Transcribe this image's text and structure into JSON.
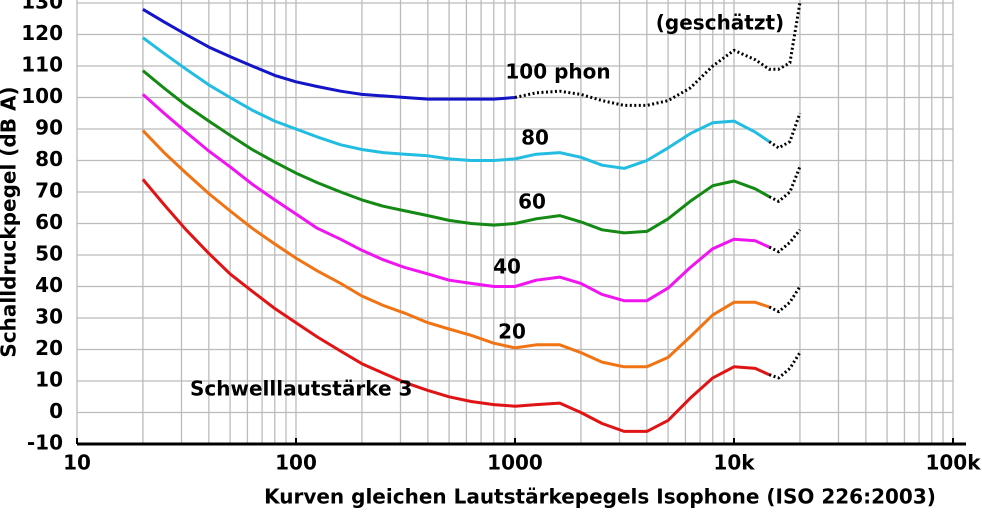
{
  "chart_data": {
    "type": "line",
    "log_x": true,
    "grid": true,
    "minor_grid": true,
    "x_label": "Kurven gleichen Lautstärkepegels Isophone (ISO 226:2003)",
    "y_label": "Schalldruckpegel (dB A)",
    "xlim": [
      10,
      100000
    ],
    "xticks": [
      10,
      100,
      1000,
      {
        "value": 10000,
        "label": "10k"
      },
      {
        "value": 100000,
        "label": "100k"
      }
    ],
    "ylim": [
      -10,
      130
    ],
    "yticks": [
      -10,
      0,
      10,
      20,
      30,
      40,
      50,
      60,
      70,
      80,
      90,
      100,
      110,
      120,
      130
    ],
    "annotations": [
      "100 phon",
      "80",
      "60",
      "40",
      "20",
      "Schwelllautstärke 3",
      "(geschätzt)"
    ],
    "x": [
      20,
      25,
      31.5,
      40,
      50,
      63,
      80,
      100,
      125,
      160,
      200,
      250,
      315,
      400,
      500,
      630,
      800,
      1000,
      1250,
      1600,
      2000,
      2500,
      3150,
      4000,
      5000,
      6300,
      8000,
      10000,
      12500,
      14500,
      16000,
      18000,
      20000
    ],
    "series": [
      {
        "color": "#1414c8",
        "style": "solid",
        "values": [
          128,
          124,
          120,
          116,
          113,
          110,
          107,
          105,
          103.5,
          102,
          101,
          100.5,
          100,
          99.5,
          99.5,
          99.5,
          99.5,
          100,
          null,
          null,
          null,
          null,
          null,
          null,
          null,
          null,
          null,
          null,
          null,
          null,
          null,
          null,
          null
        ]
      },
      {
        "color": "#22bde0",
        "style": "solid",
        "values": [
          119,
          114,
          109,
          104,
          100,
          96,
          92.5,
          90,
          87.5,
          85,
          83.5,
          82.5,
          82,
          81.5,
          80.5,
          80,
          80,
          80.5,
          82,
          82.5,
          81,
          78.5,
          77.5,
          80,
          84,
          88.5,
          92,
          92.5,
          89,
          86,
          null,
          null,
          null
        ]
      },
      {
        "color": "#148a14",
        "style": "solid",
        "values": [
          108.5,
          103,
          97.5,
          92.5,
          88,
          83.5,
          79.5,
          76,
          73,
          70,
          67.5,
          65.5,
          64,
          62.5,
          61,
          60,
          59.5,
          60,
          61.5,
          62.5,
          60.5,
          58,
          57,
          57.5,
          61.5,
          67,
          72,
          73.5,
          71,
          68.5,
          null,
          null,
          null
        ]
      },
      {
        "color": "#f014f0",
        "style": "solid",
        "values": [
          101,
          95,
          89,
          83,
          78,
          72.5,
          67.5,
          63,
          58.5,
          55,
          51.5,
          48.5,
          46,
          44,
          42,
          41,
          40,
          40,
          42,
          43,
          41,
          37.5,
          35.5,
          35.5,
          39.5,
          46,
          52,
          55,
          54.5,
          52.5,
          null,
          null,
          null
        ]
      },
      {
        "color": "#f07414",
        "style": "solid",
        "values": [
          89.5,
          82.5,
          76,
          69.5,
          64,
          58.5,
          53.5,
          49,
          45,
          41,
          37,
          34,
          31.5,
          28.5,
          26.5,
          24.5,
          22,
          20.5,
          21.5,
          21.5,
          19,
          16,
          14.5,
          14.5,
          17.5,
          24,
          31,
          35,
          35,
          33.5,
          null,
          null,
          null
        ]
      },
      {
        "color": "#e01414",
        "style": "solid",
        "values": [
          74,
          66,
          58,
          50.5,
          44,
          38.5,
          33,
          28.5,
          24,
          19.5,
          15.5,
          12.5,
          9.5,
          7,
          5,
          3.5,
          2.5,
          2,
          2.5,
          3,
          0,
          -3.5,
          -6,
          -6,
          -2.5,
          4.5,
          11,
          14.5,
          14,
          12,
          null,
          null,
          null
        ]
      },
      {
        "color": "#000000",
        "style": "dotted",
        "values": [
          null,
          null,
          null,
          null,
          null,
          null,
          null,
          null,
          null,
          null,
          null,
          null,
          null,
          null,
          null,
          null,
          null,
          100,
          101.5,
          102,
          101,
          99,
          97.5,
          97.5,
          99,
          103,
          110,
          115,
          112,
          109,
          109,
          111,
          130
        ]
      },
      {
        "color": "#000000",
        "style": "dotted",
        "values": [
          null,
          null,
          null,
          null,
          null,
          null,
          null,
          null,
          null,
          null,
          null,
          null,
          null,
          null,
          null,
          null,
          null,
          null,
          null,
          null,
          null,
          null,
          null,
          null,
          null,
          null,
          null,
          null,
          null,
          86,
          84,
          86,
          95
        ]
      },
      {
        "color": "#000000",
        "style": "dotted",
        "values": [
          null,
          null,
          null,
          null,
          null,
          null,
          null,
          null,
          null,
          null,
          null,
          null,
          null,
          null,
          null,
          null,
          null,
          null,
          null,
          null,
          null,
          null,
          null,
          null,
          null,
          null,
          null,
          null,
          null,
          68.5,
          67,
          70,
          78
        ]
      },
      {
        "color": "#000000",
        "style": "dotted",
        "values": [
          null,
          null,
          null,
          null,
          null,
          null,
          null,
          null,
          null,
          null,
          null,
          null,
          null,
          null,
          null,
          null,
          null,
          null,
          null,
          null,
          null,
          null,
          null,
          null,
          null,
          null,
          null,
          null,
          null,
          52.5,
          51,
          54,
          58
        ]
      },
      {
        "color": "#000000",
        "style": "dotted",
        "values": [
          null,
          null,
          null,
          null,
          null,
          null,
          null,
          null,
          null,
          null,
          null,
          null,
          null,
          null,
          null,
          null,
          null,
          null,
          null,
          null,
          null,
          null,
          null,
          null,
          null,
          null,
          null,
          null,
          null,
          33.5,
          32,
          35,
          40
        ]
      },
      {
        "color": "#000000",
        "style": "dotted",
        "values": [
          null,
          null,
          null,
          null,
          null,
          null,
          null,
          null,
          null,
          null,
          null,
          null,
          null,
          null,
          null,
          null,
          null,
          null,
          null,
          null,
          null,
          null,
          null,
          null,
          null,
          null,
          null,
          null,
          null,
          12,
          11,
          14,
          19
        ]
      }
    ]
  }
}
